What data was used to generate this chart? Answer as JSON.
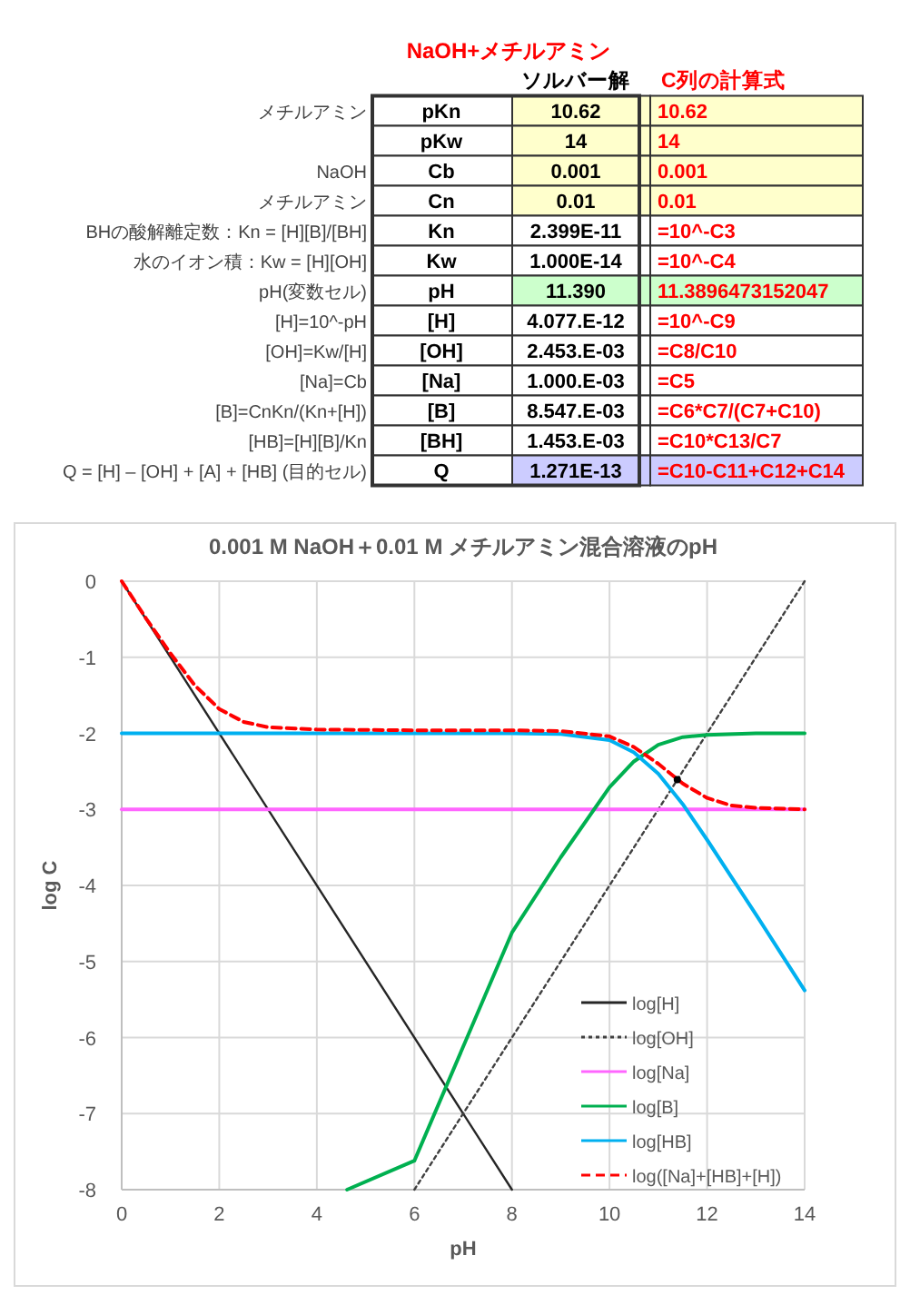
{
  "chart_data": [
    {
      "type": "other",
      "title": "NaOH+メチルアミン",
      "categories": [
        null,
        null,
        "ソルバー解",
        "C列の計算式"
      ],
      "cells": [
        [
          "メチルアミン",
          "pKn",
          "10.62",
          "10.62"
        ],
        [
          null,
          "pKw",
          "14",
          "14"
        ],
        [
          "NaOH",
          "Cb",
          "0.001",
          "0.001"
        ],
        [
          "メチルアミン",
          "Cn",
          "0.01",
          "0.01"
        ],
        [
          "BHの酸解離定数：Kn = [H][B]/[BH]",
          "Kn",
          "2.399E-11",
          "=10^-C3"
        ],
        [
          "水のイオン積：Kw = [H][OH]",
          "Kw",
          "1.000E-14",
          "=10^-C4"
        ],
        [
          "pH(変数セル)",
          "pH",
          "11.390",
          "11.3896473152047"
        ],
        [
          "[H]=10^-pH",
          "[H]",
          "4.077.E-12",
          "=10^-C9"
        ],
        [
          "[OH]=Kw/[H]",
          "[OH]",
          "2.453.E-03",
          "=C8/C10"
        ],
        [
          "[Na]=Cb",
          "[Na]",
          "1.000.E-03",
          "=C5"
        ],
        [
          "[B]=CnKn/(Kn+[H])",
          "[B]",
          "8.547.E-03",
          "=C6*C7/(C7+C10)"
        ],
        [
          "[HB]=[H][B]/Kn",
          "[BH]",
          "1.453.E-03",
          "=C10*C13/C7"
        ],
        [
          "Q = [H] – [OH] + [A] + [HB] (目的セル)",
          "Q",
          "1.271E-13",
          "=C10-C11+C12+C14"
        ]
      ]
    },
    {
      "type": "line",
      "title": "0.001 M NaOH＋0.01 M メチルアミン混合溶液のpH",
      "xlabel": "pH",
      "ylabel": "log C",
      "xlim": [
        0,
        14
      ],
      "xticks": [
        0,
        2,
        4,
        6,
        8,
        10,
        12,
        14
      ],
      "ylim": [
        -8,
        0
      ],
      "yticks": [
        0,
        -1,
        -2,
        -3,
        -4,
        -5,
        -6,
        -7,
        -8
      ],
      "grid": true,
      "legend": "bottom right",
      "series": [
        {
          "name": "log[H]",
          "color": "#262626",
          "line_style": "solid",
          "x": [
            0,
            8
          ],
          "values": [
            0,
            -8
          ]
        },
        {
          "name": "log[OH]",
          "color": "#404040",
          "line_style": "dotted",
          "x": [
            6,
            14
          ],
          "values": [
            -8,
            0
          ]
        },
        {
          "name": "log[Na]",
          "color": "#ff66ff",
          "line_style": "solid",
          "x": [
            0,
            14
          ],
          "values": [
            -3,
            -3
          ]
        },
        {
          "name": "log[B]",
          "color": "#00b050",
          "line_style": "solid",
          "x": [
            4.62,
            6,
            8,
            9,
            10,
            10.5,
            11,
            11.5,
            12,
            13,
            14
          ],
          "values": [
            -8,
            -7.62,
            -4.62,
            -3.63,
            -2.71,
            -2.37,
            -2.15,
            -2.05,
            -2.02,
            -2,
            -2
          ]
        },
        {
          "name": "log[HB]",
          "color": "#00b0f0",
          "line_style": "solid",
          "x": [
            0,
            8,
            9,
            10,
            10.5,
            11,
            11.5,
            12,
            12.5,
            13,
            14
          ],
          "values": [
            -2,
            -2,
            -2.01,
            -2.09,
            -2.25,
            -2.53,
            -2.93,
            -3.4,
            -3.89,
            -4.38,
            -5.38
          ]
        },
        {
          "name": "log([Na]+[HB]+[H])",
          "color": "#ff0000",
          "line_style": "dashed",
          "x": [
            0,
            0.5,
            1,
            1.5,
            2,
            2.5,
            3,
            4,
            6,
            8,
            9,
            10,
            10.5,
            11,
            11.5,
            12,
            12.5,
            13,
            14
          ],
          "values": [
            0,
            -0.49,
            -0.95,
            -1.37,
            -1.68,
            -1.85,
            -1.92,
            -1.95,
            -1.96,
            -1.96,
            -1.97,
            -2.04,
            -2.18,
            -2.4,
            -2.66,
            -2.85,
            -2.95,
            -2.98,
            -3
          ]
        },
        {
          "type": "scatter",
          "marker": "circle",
          "color": "#000000",
          "x": [
            11.39
          ],
          "values": [
            -2.61
          ]
        }
      ]
    }
  ]
}
